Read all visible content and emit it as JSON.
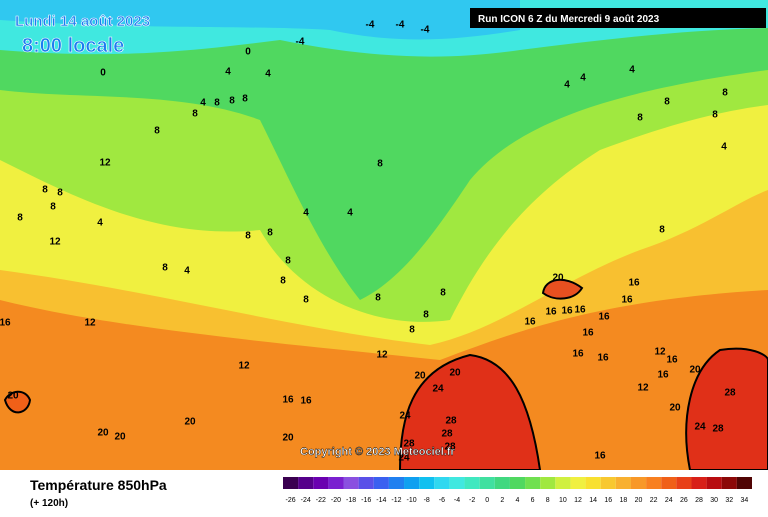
{
  "header": {
    "date": "Lundi 14 août 2023",
    "time": "8:00 locale",
    "run": "Run ICON 6 Z du Mercredi 9 août 2023"
  },
  "copyright": "Copyright © 2023 Meteociel.fr",
  "footer": {
    "title": "Température 850hPa",
    "lead": "(+ 120h)"
  },
  "legend": {
    "ticks": [
      -26,
      -24,
      -22,
      -20,
      -18,
      -16,
      -14,
      -12,
      -10,
      -8,
      -6,
      -4,
      -2,
      0,
      2,
      4,
      6,
      8,
      10,
      12,
      14,
      16,
      18,
      20,
      22,
      24,
      26,
      28,
      30,
      32,
      34
    ],
    "colors": [
      "#3a0050",
      "#55008a",
      "#6a00b0",
      "#7a20d0",
      "#8a50e0",
      "#5a50e8",
      "#3a60f0",
      "#2080f0",
      "#10a0f0",
      "#10c0f0",
      "#30d8f0",
      "#40e8e0",
      "#40e8c0",
      "#40e0a0",
      "#40d880",
      "#50d860",
      "#70e050",
      "#a0e840",
      "#d0f040",
      "#f0f040",
      "#f8e030",
      "#f8c830",
      "#f8b030",
      "#f89828",
      "#f88020",
      "#f06018",
      "#e84018",
      "#d82018",
      "#b80c10",
      "#8c0808",
      "#500404"
    ]
  },
  "contours": [
    -4,
    -4,
    -4,
    0,
    -4,
    0,
    4,
    4,
    4,
    4,
    4,
    4,
    8,
    8,
    8,
    8,
    8,
    8,
    8,
    8,
    8,
    12,
    4,
    8,
    8,
    8,
    8,
    8,
    4,
    4,
    4,
    8,
    8,
    12,
    8,
    8,
    4,
    8,
    20,
    16,
    16,
    8,
    8,
    8,
    8,
    8,
    8,
    12,
    16,
    16,
    16,
    16,
    16,
    16,
    16,
    16,
    16,
    12,
    12,
    12,
    16,
    16,
    20,
    20,
    20,
    24,
    12,
    20,
    16,
    16,
    28,
    20,
    24,
    28,
    28,
    20,
    20,
    20,
    24,
    28,
    20,
    28,
    28,
    24,
    16
  ]
}
